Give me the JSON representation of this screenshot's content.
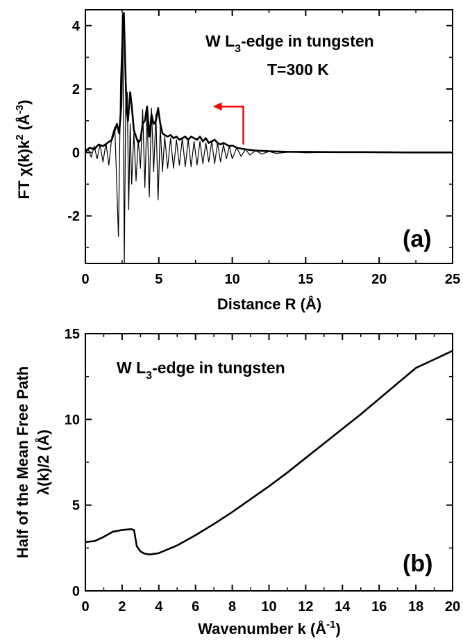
{
  "chart_data": [
    {
      "panel": "a",
      "type": "line",
      "panel_label": "(a)",
      "xlabel": "Distance R (Å)",
      "ylabel_main": "FT χ(k)k",
      "ylabel_sup": "2",
      "ylabel_unit": " (Å",
      "ylabel_unit_sup": "-3",
      "ylabel_end": ")",
      "xlim": [
        0,
        25
      ],
      "ylim": [
        -3.5,
        4.5
      ],
      "xticks": [
        0,
        5,
        10,
        15,
        20,
        25
      ],
      "xtick_labels": [
        "0",
        "5",
        "10",
        "15",
        "20",
        "25"
      ],
      "yticks": [
        -2,
        0,
        2,
        4
      ],
      "ytick_labels": [
        "-2",
        "0",
        "2",
        "4"
      ],
      "annotation_line1_pre": "W L",
      "annotation_line1_sub": "3",
      "annotation_line1_post": "-edge in tungsten",
      "annotation_line2": "T=300 K",
      "arrow_color": "#ff0000",
      "arrow_path_data": [
        [
          10.75,
          0.25
        ],
        [
          10.75,
          1.45
        ],
        [
          9.1,
          1.45
        ]
      ],
      "series": [
        {
          "style": "thin",
          "description_role": "imaginary part",
          "x": [
            0,
            0.2,
            0.4,
            0.6,
            0.8,
            1.0,
            1.2,
            1.4,
            1.6,
            1.8,
            2.0,
            2.1,
            2.25,
            2.4,
            2.55,
            2.65,
            2.75,
            2.85,
            2.95,
            3.05,
            3.15,
            3.3,
            3.45,
            3.6,
            3.75,
            3.9,
            4.05,
            4.2,
            4.35,
            4.5,
            4.65,
            4.8,
            4.95,
            5.1,
            5.25,
            5.4,
            5.6,
            5.8,
            6.0,
            6.2,
            6.4,
            6.6,
            6.8,
            7.0,
            7.2,
            7.4,
            7.6,
            7.8,
            8.0,
            8.2,
            8.4,
            8.6,
            8.8,
            9.0,
            9.2,
            9.4,
            9.6,
            9.8,
            10.0,
            10.3,
            10.6,
            10.9,
            11.2,
            11.6,
            12.0,
            12.5,
            13.0,
            14.0,
            15.0,
            17.0,
            19.0,
            22.0,
            25.0
          ],
          "y": [
            0,
            0.1,
            -0.15,
            0.2,
            -0.2,
            0.25,
            -0.3,
            0.3,
            -0.4,
            0.5,
            0.8,
            -0.5,
            -2.65,
            2.3,
            4.35,
            -3.5,
            1.8,
            1.9,
            -1.8,
            0.9,
            -1.0,
            0.6,
            -0.9,
            0.4,
            -0.5,
            1.35,
            -1.1,
            1.35,
            -1.4,
            1.4,
            -0.6,
            1.2,
            -1.5,
            0.8,
            -0.6,
            0.5,
            -0.5,
            0.45,
            -0.5,
            0.4,
            -0.4,
            0.45,
            -0.45,
            0.4,
            -0.45,
            0.35,
            -0.4,
            0.35,
            -0.35,
            0.3,
            -0.3,
            0.35,
            -0.35,
            0.3,
            -0.3,
            0.25,
            -0.2,
            0.2,
            -0.2,
            0.15,
            -0.12,
            0.1,
            -0.08,
            0.06,
            -0.05,
            0.03,
            -0.03,
            0.02,
            -0.01,
            0.01,
            0,
            0,
            0
          ]
        },
        {
          "style": "thick",
          "description_role": "magnitude",
          "x": [
            0,
            0.3,
            0.6,
            0.9,
            1.2,
            1.5,
            1.8,
            2.0,
            2.15,
            2.3,
            2.45,
            2.55,
            2.62,
            2.7,
            2.8,
            2.9,
            3.05,
            3.15,
            3.3,
            3.45,
            3.6,
            3.75,
            3.9,
            4.05,
            4.2,
            4.35,
            4.5,
            4.65,
            4.8,
            4.95,
            5.1,
            5.25,
            5.4,
            5.6,
            5.8,
            6.0,
            6.2,
            6.4,
            6.6,
            6.8,
            7.0,
            7.2,
            7.4,
            7.6,
            7.8,
            8.0,
            8.2,
            8.4,
            8.6,
            8.8,
            9.0,
            9.2,
            9.4,
            9.6,
            9.8,
            10.0,
            10.3,
            10.6,
            10.9,
            11.2,
            11.6,
            12.0,
            12.5,
            13.0,
            14.0,
            15.0,
            17.0,
            19.0,
            22.0,
            25.0
          ],
          "y": [
            0.05,
            0.15,
            0.1,
            0.25,
            0.2,
            0.3,
            0.4,
            0.7,
            0.9,
            0.6,
            1.5,
            4.35,
            4.4,
            3.0,
            1.4,
            1.0,
            1.9,
            1.5,
            0.7,
            0.5,
            0.3,
            0.4,
            0.9,
            1.0,
            1.45,
            0.5,
            1.2,
            0.9,
            1.0,
            1.4,
            0.9,
            0.6,
            0.55,
            0.5,
            0.55,
            0.45,
            0.5,
            0.4,
            0.45,
            0.5,
            0.4,
            0.5,
            0.45,
            0.4,
            0.5,
            0.35,
            0.45,
            0.3,
            0.35,
            0.4,
            0.3,
            0.25,
            0.3,
            0.25,
            0.2,
            0.22,
            0.15,
            0.12,
            0.1,
            0.08,
            0.06,
            0.05,
            0.04,
            0.03,
            0.02,
            0.02,
            0.01,
            0.01,
            0.0,
            0.0
          ]
        }
      ]
    },
    {
      "panel": "b",
      "type": "line",
      "panel_label": "(b)",
      "xlabel_main": "Wavenumber k (Å",
      "xlabel_sup": "-1",
      "xlabel_end": ")",
      "ylabel_line1": "Half of the Mean Free Path",
      "ylabel_line2": "λ(k)/2 (Å)",
      "xlim": [
        0,
        20
      ],
      "ylim": [
        0,
        15
      ],
      "xticks": [
        0,
        2,
        4,
        6,
        8,
        10,
        12,
        14,
        16,
        18,
        20
      ],
      "xtick_labels": [
        "0",
        "2",
        "4",
        "6",
        "8",
        "10",
        "12",
        "14",
        "16",
        "18",
        "20"
      ],
      "yticks": [
        0,
        5,
        10,
        15
      ],
      "ytick_labels": [
        "0",
        "5",
        "10",
        "15"
      ],
      "annotation_pre": "W L",
      "annotation_sub": "3",
      "annotation_post": "-edge in tungsten",
      "series": [
        {
          "style": "thick",
          "x": [
            0,
            0.5,
            1.0,
            1.5,
            2.0,
            2.5,
            2.65,
            2.8,
            3.0,
            3.2,
            3.5,
            4.0,
            5.0,
            6.0,
            7.0,
            8.0,
            9.0,
            10.0,
            11.0,
            12.0,
            13.0,
            14.0,
            15.0,
            16.0,
            17.0,
            18.0,
            19.0,
            20.0
          ],
          "y": [
            2.85,
            2.9,
            3.15,
            3.45,
            3.55,
            3.6,
            3.55,
            2.6,
            2.3,
            2.18,
            2.12,
            2.2,
            2.65,
            3.25,
            3.9,
            4.6,
            5.35,
            6.1,
            6.9,
            7.75,
            8.6,
            9.45,
            10.3,
            11.2,
            12.1,
            13.0,
            13.5,
            14.0
          ]
        }
      ]
    }
  ]
}
